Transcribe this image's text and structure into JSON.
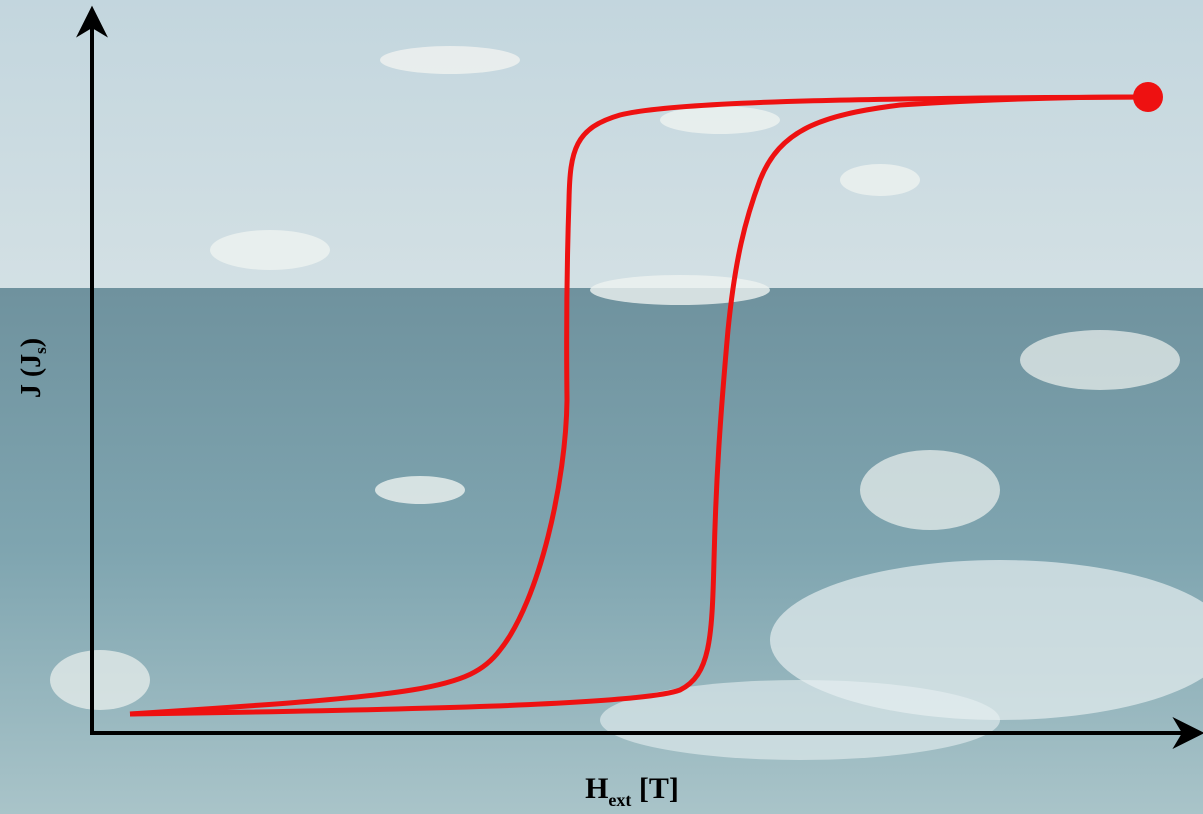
{
  "axes": {
    "y_label": {
      "main": "J (J",
      "sub": "s",
      "end": ")"
    },
    "x_label": {
      "main": "H",
      "sub": "ext",
      "end": " [T]"
    }
  }
}
